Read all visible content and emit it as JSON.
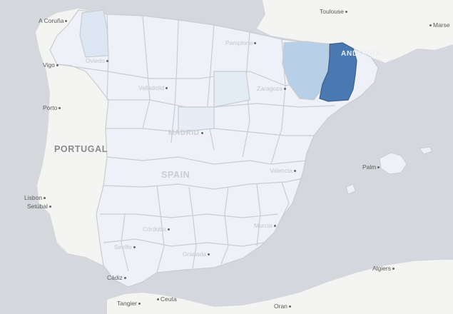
{
  "map": {
    "colors": {
      "sea": "#d4d8dc",
      "land": "#f4f4f2",
      "region_default": "#eef2f8",
      "region_border": "#c9ccd0",
      "highlight_dark": "#4a78b0",
      "highlight_medium": "#b7d0e8",
      "highlight_light": "#dce6f2"
    },
    "labels": {
      "a_coruna": "A Coruña",
      "vigo": "Vigo",
      "porto": "Porto",
      "portugal": "PORTUGAL",
      "lisbon": "Lisbon",
      "setubal": "Setúbal",
      "cadiz": "Cádiz",
      "tangier": "Tangier",
      "ceuta": "Ceuta",
      "toulouse": "Toulouse",
      "marseille": "Marse",
      "andorra": "ANDORRA",
      "palma": "Palm",
      "algiers": "Algiers",
      "oran": "Oran",
      "madrid": "MADRID",
      "spain": "SPAIN",
      "valladolid": "Valladolid",
      "zaragoza": "Zaragoza",
      "valencia": "Valencia",
      "cordoba": "Córdoba",
      "seville": "Seville",
      "granada": "Granada",
      "murcia": "Murcia",
      "oviedo": "Oviedo",
      "pamplona": "Pamplona"
    }
  }
}
